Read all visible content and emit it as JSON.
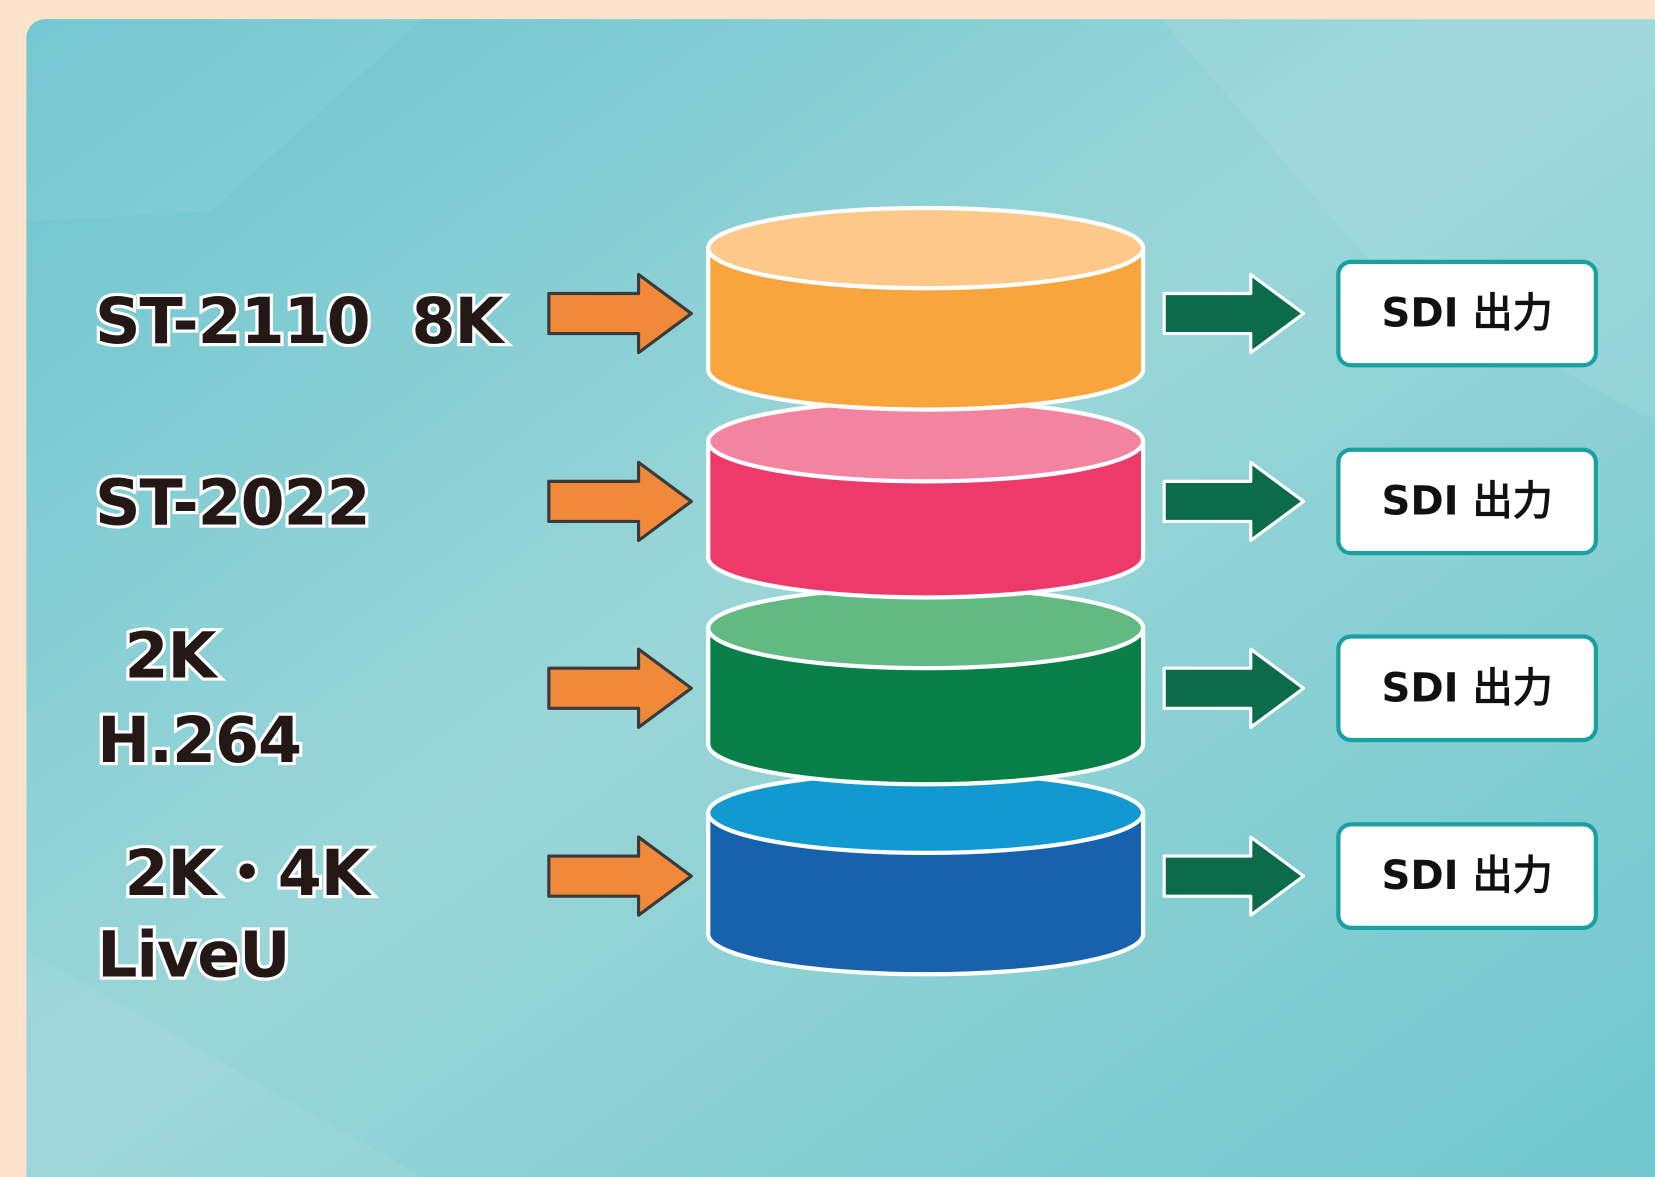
{
  "rows": [
    {
      "input": [
        "ST-2110  8K"
      ],
      "output": "SDI 出力"
    },
    {
      "input": [
        "ST-2022"
      ],
      "output": "SDI 出力"
    },
    {
      "input": [
        "2K",
        "H.264"
      ],
      "output": "SDI 出力"
    },
    {
      "input": [
        "2K・4K",
        "LiveU"
      ],
      "output": "SDI 出力"
    }
  ]
}
